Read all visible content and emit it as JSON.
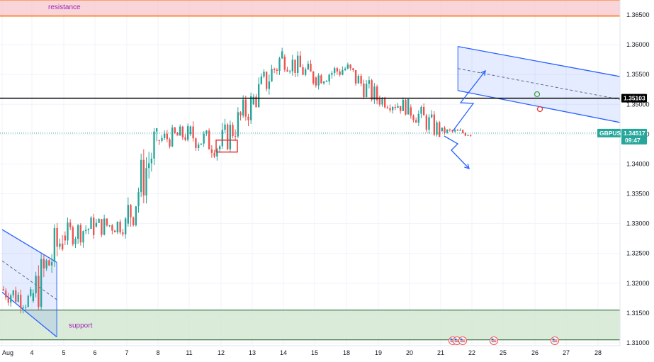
{
  "chart_data": {
    "type": "candlestick",
    "symbol": "GBPUSD",
    "last_price": "1.34517",
    "countdown": "09:47",
    "horizontal_line_value": 1.35103,
    "horizontal_line_label": "1.35103",
    "ylim": [
      1.3099,
      1.3675
    ],
    "y_ticks": [
      1.31,
      1.315,
      1.32,
      1.325,
      1.33,
      1.335,
      1.34,
      1.345,
      1.35,
      1.355,
      1.36,
      1.365
    ],
    "y_tick_labels": [
      "1.31000",
      "1.31500",
      "1.32000",
      "1.32500",
      "1.33000",
      "1.33500",
      "1.34000",
      "1.34500",
      "1.35000",
      "1.35500",
      "1.36000",
      "1.36500"
    ],
    "x_tick_labels": [
      "Aug",
      "4",
      "5",
      "6",
      "7",
      "8",
      "11",
      "12",
      "13",
      "14",
      "15",
      "18",
      "19",
      "20",
      "21",
      "22",
      "25",
      "26",
      "27",
      "28"
    ],
    "x_tick_index": [
      0,
      1,
      2,
      3,
      4,
      5,
      6,
      7,
      8,
      9,
      10,
      11,
      12,
      13,
      14,
      15,
      16,
      17,
      18,
      19
    ],
    "zones": [
      {
        "name": "resistance",
        "from": 1.3648,
        "to": 1.3675,
        "color": "#f7c6cb"
      },
      {
        "name": "support",
        "from": 1.3105,
        "to": 1.3155,
        "color": "#d5e8d4"
      }
    ],
    "daily_ohlc": [
      {
        "day": "Aug",
        "o": 1.319,
        "h": 1.3215,
        "l": 1.314,
        "c": 1.317
      },
      {
        "day": "4",
        "o": 1.317,
        "h": 1.331,
        "l": 1.315,
        "c": 1.328
      },
      {
        "day": "5",
        "o": 1.328,
        "h": 1.333,
        "l": 1.3255,
        "c": 1.3295
      },
      {
        "day": "6",
        "o": 1.3295,
        "h": 1.3325,
        "l": 1.326,
        "c": 1.33
      },
      {
        "day": "7",
        "o": 1.33,
        "h": 1.346,
        "l": 1.3295,
        "c": 1.344
      },
      {
        "day": "8",
        "o": 1.344,
        "h": 1.348,
        "l": 1.342,
        "c": 1.345
      },
      {
        "day": "11",
        "o": 1.345,
        "h": 1.348,
        "l": 1.34,
        "c": 1.343
      },
      {
        "day": "12",
        "o": 1.343,
        "h": 1.352,
        "l": 1.342,
        "c": 1.35
      },
      {
        "day": "13",
        "o": 1.35,
        "h": 1.3595,
        "l": 1.3495,
        "c": 1.358
      },
      {
        "day": "14",
        "o": 1.358,
        "h": 1.3595,
        "l": 1.3525,
        "c": 1.3545
      },
      {
        "day": "15",
        "o": 1.3545,
        "h": 1.358,
        "l": 1.352,
        "c": 1.356
      },
      {
        "day": "18",
        "o": 1.356,
        "h": 1.357,
        "l": 1.35,
        "c": 1.351
      },
      {
        "day": "19",
        "o": 1.351,
        "h": 1.353,
        "l": 1.348,
        "c": 1.3495
      },
      {
        "day": "20",
        "o": 1.3495,
        "h": 1.3515,
        "l": 1.3445,
        "c": 1.3455
      },
      {
        "day": "21",
        "o": 1.3455,
        "h": 1.347,
        "l": 1.3445,
        "c": 1.34517
      }
    ],
    "annotations": {
      "channel_upper": [
        {
          "x": 14.55,
          "y": 1.3597
        },
        {
          "x": 24.7,
          "y": 1.3497
        }
      ],
      "channel_lower": [
        {
          "x": 14.55,
          "y": 1.3523
        },
        {
          "x": 24.7,
          "y": 1.3417
        }
      ],
      "left_channel_upper": [
        {
          "x": 0.0,
          "y": 1.329
        },
        {
          "x": 1.78,
          "y": 1.3235
        }
      ],
      "left_channel_lower": [
        {
          "x": 0.0,
          "y": 1.3185
        },
        {
          "x": 1.78,
          "y": 1.311
        }
      ]
    },
    "colors": {
      "up": "#26a69a",
      "down": "#ef5350",
      "channel": "#2962ff",
      "support_line": "#1b5e20",
      "resistance_line": "#ff6d00",
      "last_price_tag": "#26a69a",
      "label": "#9c27b0"
    }
  }
}
